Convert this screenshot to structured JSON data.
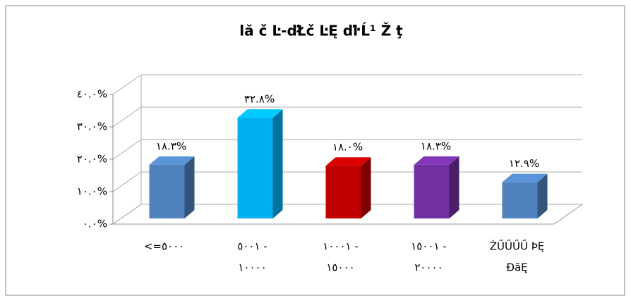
{
  "chart_data": {
    "type": "bar3d",
    "title": "lă č Ŀ-ďŁč ĿĘ ďŀĹ¹  Ž ţ",
    "categories": [
      [
        "<=٥٠٠٠"
      ],
      [
        "٥٠٠١ -",
        "١٠٠٠٠"
      ],
      [
        "١٠٠٠١ -",
        "١٥٠٠٠"
      ],
      [
        "١٥٠٠١ -",
        "٢٠٠٠٠"
      ],
      [
        "ŹŰŰŰŰ  ÞĘ",
        "ĐăĘ"
      ]
    ],
    "values": [
      18.3,
      32.8,
      18.0,
      18.3,
      12.9
    ],
    "value_labels": [
      "١٨.٣%",
      "٣٢.٨%",
      "١٨.٠%",
      "١٨.٣%",
      "١٢.٩%"
    ],
    "colors": [
      "#4f81bd",
      "#00b0f0",
      "#c00000",
      "#7030a0",
      "#4f81bd"
    ],
    "ylim": [
      0,
      40
    ],
    "yticks": [
      {
        "value": 0,
        "label": "٠.٠%"
      },
      {
        "value": 10,
        "label": "١٠.٠%"
      },
      {
        "value": 20,
        "label": "٢٠.٠%"
      },
      {
        "value": 30,
        "label": "٣٠.٠%"
      },
      {
        "value": 40,
        "label": "٤٠.٠%"
      }
    ],
    "grid": true
  }
}
